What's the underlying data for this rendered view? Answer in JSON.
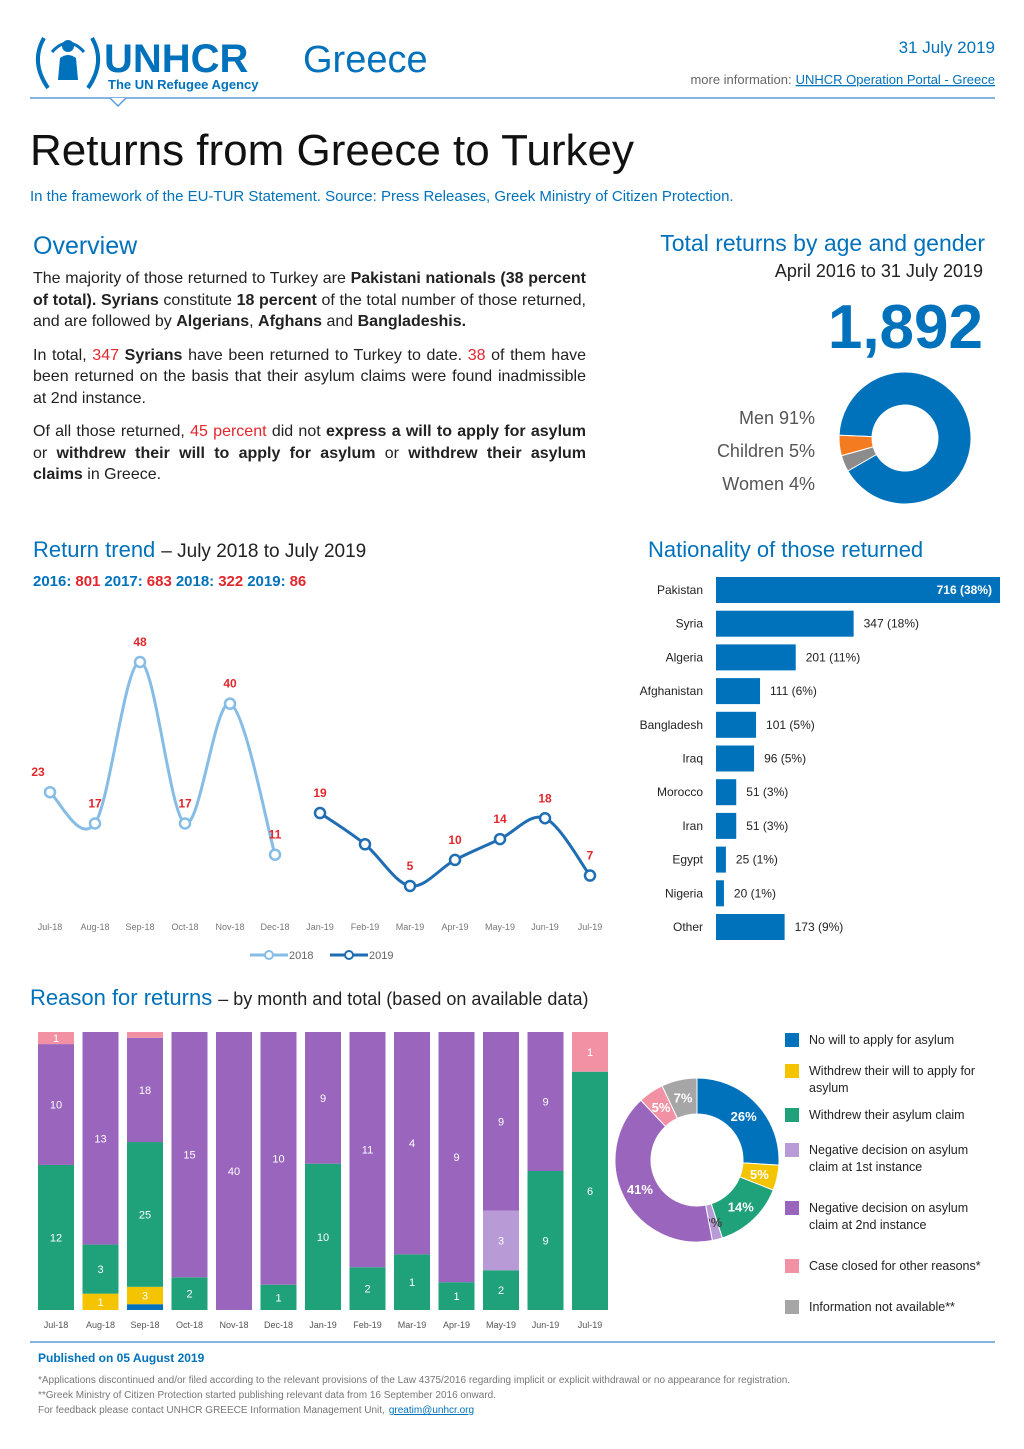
{
  "header": {
    "org": "UNHCR",
    "agency": "The UN Refugee Agency",
    "country": "Greece",
    "date": "31 July 2019",
    "more_info": "more information:",
    "link": "UNHCR Operation Portal - Greece"
  },
  "title": "Returns from Greece to Turkey",
  "subtitle": "In the framework of the EU-TUR Statement.  Source: Press Releases, Greek Ministry of Citizen Protection.",
  "overview": {
    "heading": "Overview",
    "paragraphs": [
      [
        {
          "text": "The majority of those returned to Turkey are "
        },
        {
          "text": "Pakistani nationals (38 percent of total).",
          "style": "bold"
        },
        {
          "text": " "
        },
        {
          "text": "Syrians",
          "style": "bold"
        },
        {
          "text": " constitute "
        },
        {
          "text": "18 percent",
          "style": "bold"
        },
        {
          "text": " of the total number of those returned, and are followed by "
        },
        {
          "text": "Algerians",
          "style": "bold"
        },
        {
          "text": ", "
        },
        {
          "text": "Afghans",
          "style": "bold"
        },
        {
          "text": " and "
        },
        {
          "text": "Bangladeshis.",
          "style": "bold"
        }
      ],
      [
        {
          "text": "In total, "
        },
        {
          "text": "347",
          "style": "red"
        },
        {
          "text": " "
        },
        {
          "text": "Syrians",
          "style": "bold"
        },
        {
          "text": " have been returned to Turkey to date. "
        },
        {
          "text": "38",
          "style": "red"
        },
        {
          "text": " of them have been returned on the basis that their asylum claims were found inadmissible at 2nd instance."
        }
      ],
      [
        {
          "text": "Of all those returned, "
        },
        {
          "text": "45 percent",
          "style": "red"
        },
        {
          "text": " did not "
        },
        {
          "text": "express a will to apply for asylum",
          "style": "bold"
        },
        {
          "text": " or "
        },
        {
          "text": "withdrew their will to apply for asylum",
          "style": "bold"
        },
        {
          "text": " or "
        },
        {
          "text": "withdrew their asylum claims",
          "style": "bold"
        },
        {
          "text": " in Greece."
        }
      ]
    ]
  },
  "total_returns": "1,892",
  "trend_yearly": [
    {
      "label": "2016:",
      "total": 801
    },
    {
      "label": "2017:",
      "total": 683
    },
    {
      "label": "2018:",
      "total": 322
    },
    {
      "label": "2019:",
      "total": 86
    }
  ],
  "chart_data": [
    {
      "type": "pie",
      "title": "Total returns by age and gender",
      "subtitle": "April 2016 to 31 July 2019",
      "categories": [
        "Men",
        "Children",
        "Women"
      ],
      "values": [
        91,
        5,
        4
      ],
      "value_labels": [
        "91%",
        "5%",
        "4%"
      ],
      "colors": [
        "#0072bc",
        "#f47b20",
        "#8c8c8c"
      ]
    },
    {
      "type": "line",
      "title": "Return trend",
      "subtitle": "– July 2018 to July 2019",
      "categories": [
        "Jul-18",
        "Aug-18",
        "Sep-18",
        "Oct-18",
        "Nov-18",
        "Dec-18",
        "Jan-19",
        "Feb-19",
        "Mar-19",
        "Apr-19",
        "May-19",
        "Jun-19",
        "Jul-19"
      ],
      "series": [
        {
          "name": "2018",
          "color": "#86bde6",
          "values": [
            23,
            17,
            48,
            17,
            40,
            11,
            null,
            null,
            null,
            null,
            null,
            null,
            null
          ]
        },
        {
          "name": "2019",
          "color": "#1f6db3",
          "values": [
            null,
            null,
            null,
            null,
            null,
            null,
            19,
            13,
            5,
            10,
            14,
            18,
            7
          ],
          "value_labels": [
            null,
            null,
            null,
            null,
            null,
            null,
            "19",
            null,
            "5",
            "10",
            "14",
            "18",
            "7"
          ]
        }
      ]
    },
    {
      "type": "bar",
      "orientation": "horizontal",
      "title": "Nationality of those returned",
      "color": "#0072bc",
      "categories": [
        "Pakistan",
        "Syria",
        "Algeria",
        "Afghanistan",
        "Bangladesh",
        "Iraq",
        "Morocco",
        "Iran",
        "Egypt",
        "Nigeria",
        "Other"
      ],
      "values": [
        716,
        347,
        201,
        111,
        101,
        96,
        51,
        51,
        25,
        20,
        173
      ],
      "value_labels": [
        "716 (38%)",
        "347 (18%)",
        "201 (11%)",
        "111 (6%)",
        "101 (5%)",
        "96 (5%)",
        "51 (3%)",
        "51 (3%)",
        "25 (1%)",
        "20 (1%)",
        "173 (9%)"
      ]
    },
    {
      "type": "bar",
      "stacked": true,
      "normalized": true,
      "title": "Reason for returns",
      "subtitle": "– by month and total (based on available data)",
      "categories": [
        "Jul-18",
        "Aug-18",
        "Sep-18",
        "Oct-18",
        "Nov-18",
        "Dec-18",
        "Jan-19",
        "Feb-19",
        "Mar-19",
        "Apr-19",
        "May-19",
        "Jun-19",
        "Jul-19"
      ],
      "series": [
        {
          "name": "No will to apply for asylum",
          "color": "#0072bc",
          "values": [
            0,
            0,
            1,
            0,
            0,
            0,
            0,
            0,
            0,
            0,
            0,
            0,
            0
          ]
        },
        {
          "name": "Withdrew their will to apply for asylum",
          "color": "#f5c400",
          "values": [
            0,
            1,
            3,
            0,
            0,
            0,
            0,
            0,
            0,
            0,
            0,
            0,
            0
          ]
        },
        {
          "name": "Withdrew their asylum claim",
          "color": "#1fa17a",
          "values": [
            12,
            3,
            25,
            2,
            0,
            1,
            10,
            2,
            1,
            1,
            2,
            9,
            6
          ]
        },
        {
          "name": "Negative decision on asylum claim at 1st instance",
          "color": "#b89ad6",
          "values": [
            0,
            0,
            0,
            0,
            0,
            0,
            0,
            0,
            0,
            0,
            3,
            0,
            0
          ]
        },
        {
          "name": "Negative decision on asylum claim at 2nd instance",
          "color": "#9a66bd",
          "values": [
            10,
            13,
            18,
            15,
            40,
            10,
            9,
            11,
            4,
            9,
            9,
            9,
            0
          ]
        },
        {
          "name": "Case closed for other reasons*",
          "color": "#f291a3",
          "values": [
            1,
            0,
            1,
            0,
            0,
            0,
            0,
            0,
            0,
            0,
            0,
            0,
            1
          ]
        },
        {
          "name": "Information not available**",
          "color": "#a6a6a6",
          "values": [
            0,
            0,
            0,
            0,
            0,
            0,
            0,
            0,
            0,
            0,
            0,
            0,
            0
          ]
        }
      ]
    },
    {
      "type": "pie",
      "values": [
        26,
        5,
        14,
        2,
        41,
        5,
        7
      ],
      "value_labels": [
        "26%",
        "5%",
        "14%",
        "2%",
        "41%",
        "5%",
        "7%"
      ],
      "colors": [
        "#0072bc",
        "#f5c400",
        "#1fa17a",
        "#b89ad6",
        "#9a66bd",
        "#f291a3",
        "#a6a6a6"
      ]
    }
  ],
  "footer": {
    "published": "Published on 05 August 2019",
    "notes": [
      "*Applications discontinued and/or filed according to the relevant provisions of the Law 4375/2016 regarding implicit or explicit withdrawal or no appearance for registration.",
      "**Greek Ministry of Citizen Protection started publishing relevant data from 16 September 2016 onward."
    ],
    "contact": "For feedback please contact UNHCR GREECE Information Management Unit,",
    "email": "greatim@unhcr.org"
  }
}
